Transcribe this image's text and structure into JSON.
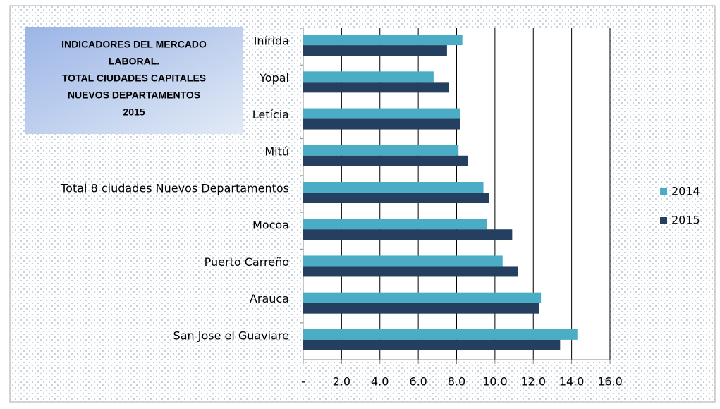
{
  "chart_data": {
    "type": "bar",
    "orientation": "horizontal",
    "title": [
      "INDICADORES DEL MERCADO",
      "LABORAL.",
      "TOTAL CIUDADES CAPITALES",
      "NUEVOS DEPARTAMENTOS",
      "2015"
    ],
    "categories": [
      "Inírida",
      "Yopal",
      "Letícia",
      "Mitú",
      "Total 8 ciudades Nuevos  Departamentos",
      "Mocoa",
      "Puerto Carreño",
      "Arauca",
      "San Jose el Guaviare"
    ],
    "series": [
      {
        "name": "2014",
        "color": "#4bacc6",
        "values": [
          8.3,
          6.8,
          8.2,
          8.1,
          9.4,
          9.6,
          10.4,
          12.4,
          14.3
        ]
      },
      {
        "name": "2015",
        "color": "#243f60",
        "values": [
          7.5,
          7.6,
          8.2,
          8.6,
          9.7,
          10.9,
          11.2,
          12.3,
          13.4
        ]
      }
    ],
    "xlim": [
      0,
      16
    ],
    "xticks": [
      {
        "value": 0,
        "label": "-"
      },
      {
        "value": 2,
        "label": "2.0"
      },
      {
        "value": 4,
        "label": "4.0"
      },
      {
        "value": 6,
        "label": "6.0"
      },
      {
        "value": 8,
        "label": "8.0"
      },
      {
        "value": 10,
        "label": "10.0"
      },
      {
        "value": 12,
        "label": "12.0"
      },
      {
        "value": 14,
        "label": "14.0"
      },
      {
        "value": 16,
        "label": "16.0"
      }
    ],
    "grid": true,
    "legend": "right"
  }
}
